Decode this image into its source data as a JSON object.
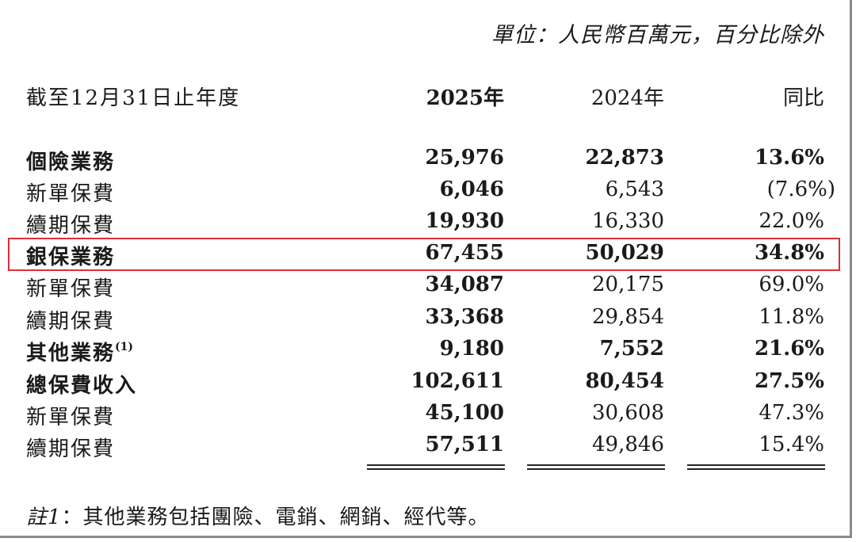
{
  "unit_note": "單位：人民幣百萬元，百分比除外",
  "header": {
    "label": "截至12月31日止年度",
    "col_2025": "2025年",
    "col_2024": "2024年",
    "col_yoy": "同比"
  },
  "rows": [
    {
      "label": "個險業務",
      "v2025": "25,976",
      "v2024": "22,873",
      "yoy": "13.6%"
    },
    {
      "label": "新單保費",
      "v2025": "6,046",
      "v2024": "6,543",
      "yoy": "(7.6%)"
    },
    {
      "label": "續期保費",
      "v2025": "19,930",
      "v2024": "16,330",
      "yoy": "22.0%"
    },
    {
      "label": "銀保業務",
      "v2025": "67,455",
      "v2024": "50,029",
      "yoy": "34.8%"
    },
    {
      "label": "新單保費",
      "v2025": "34,087",
      "v2024": "20,175",
      "yoy": "69.0%"
    },
    {
      "label": "續期保費",
      "v2025": "33,368",
      "v2024": "29,854",
      "yoy": "11.8%"
    },
    {
      "label": "其他業務",
      "label_sup": "(1)",
      "v2025": "9,180",
      "v2024": "7,552",
      "yoy": "21.6%"
    },
    {
      "label": "總保費收入",
      "v2025": "102,611",
      "v2024": "80,454",
      "yoy": "27.5%"
    },
    {
      "label": "新單保費",
      "v2025": "45,100",
      "v2024": "30,608",
      "yoy": "47.3%"
    },
    {
      "label": "續期保費",
      "v2025": "57,511",
      "v2024": "49,846",
      "yoy": "15.4%"
    }
  ],
  "footnote": {
    "mark": "註1",
    "text": "：其他業務包括團險、電銷、網銷、經代等。"
  },
  "highlight_color": "#d9303a"
}
